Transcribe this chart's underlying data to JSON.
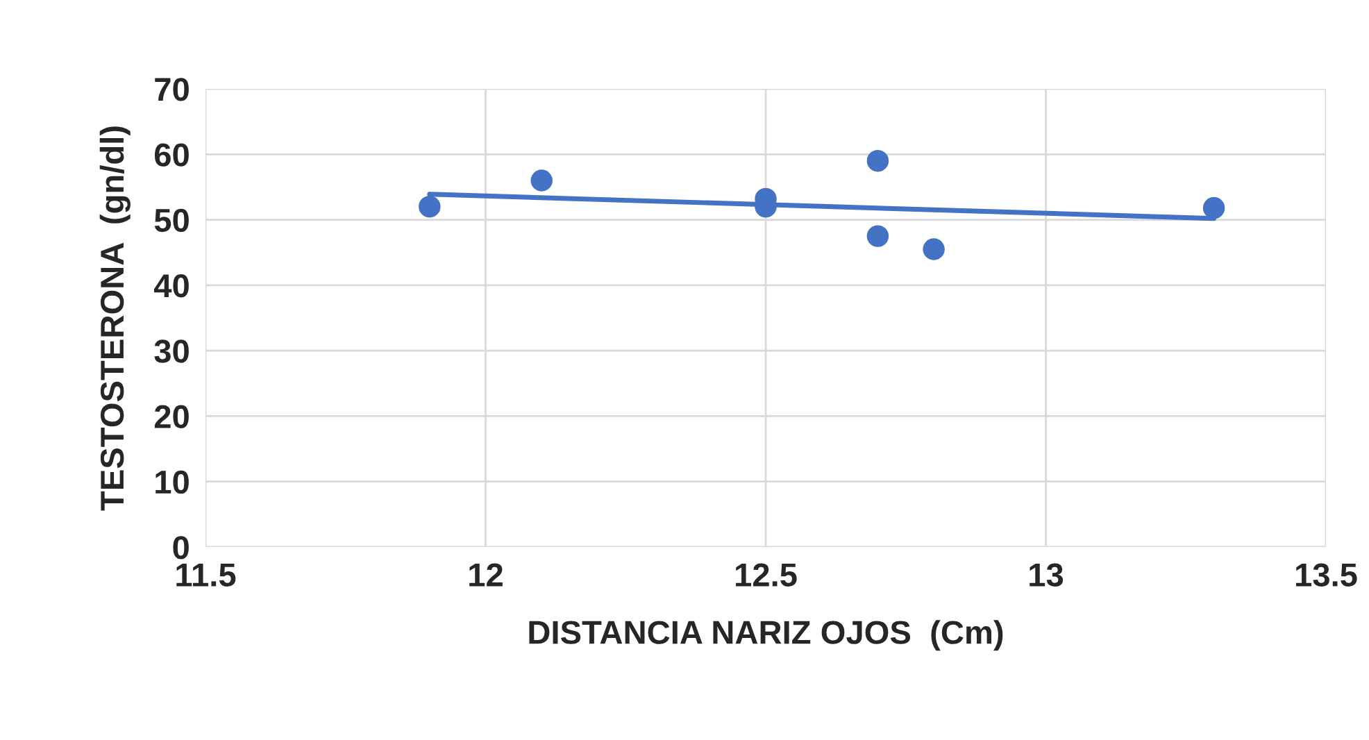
{
  "chart_data": {
    "type": "scatter",
    "xlabel": "DISTANCIA NARIZ OJOS  (Cm)",
    "ylabel": "TESTOSTERONA  (gn/dl)",
    "series": [
      {
        "color": "#4472c4",
        "x": [
          11.9,
          12.1,
          12.5,
          12.5,
          12.7,
          12.7,
          12.8,
          13.3
        ],
        "values": [
          52,
          56,
          53.2,
          52,
          59,
          47.5,
          45.5,
          51.8
        ],
        "marker": "circle"
      },
      {
        "type": "line",
        "color": "#4472c4",
        "x": [
          11.9,
          13.3
        ],
        "values": [
          53.9,
          50.2
        ],
        "line_style": "solid"
      }
    ],
    "xlim": [
      11.5,
      13.5
    ],
    "xticks": [
      11.5,
      12,
      12.5,
      13,
      13.5
    ],
    "ylim": [
      0,
      70
    ],
    "yticks": [
      0,
      10,
      20,
      30,
      40,
      50,
      60,
      70
    ],
    "grid": true
  }
}
